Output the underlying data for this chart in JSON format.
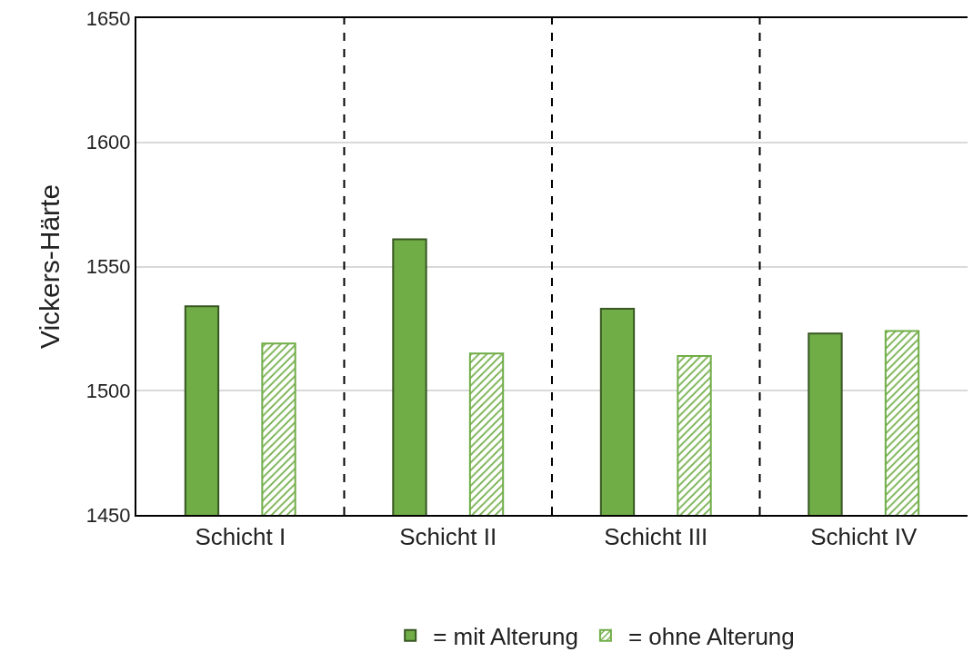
{
  "chart_data": {
    "type": "bar",
    "ylabel": "Vickers-Härte",
    "categories": [
      "Schicht I",
      "Schicht II",
      "Schicht III",
      "Schicht IV"
    ],
    "series": [
      {
        "name": "= mit Alterung",
        "color": "#70ad47",
        "values": [
          1534,
          1561,
          1533,
          1523
        ]
      },
      {
        "name": "= ohne Alterung",
        "color": "#70ad47",
        "values": [
          1519,
          1515,
          1514,
          1524
        ]
      }
    ],
    "ylim": [
      1450,
      1650
    ],
    "yticks": [
      1450,
      1500,
      1550,
      1600,
      1650
    ],
    "grid": "y",
    "legend": "bottom"
  }
}
